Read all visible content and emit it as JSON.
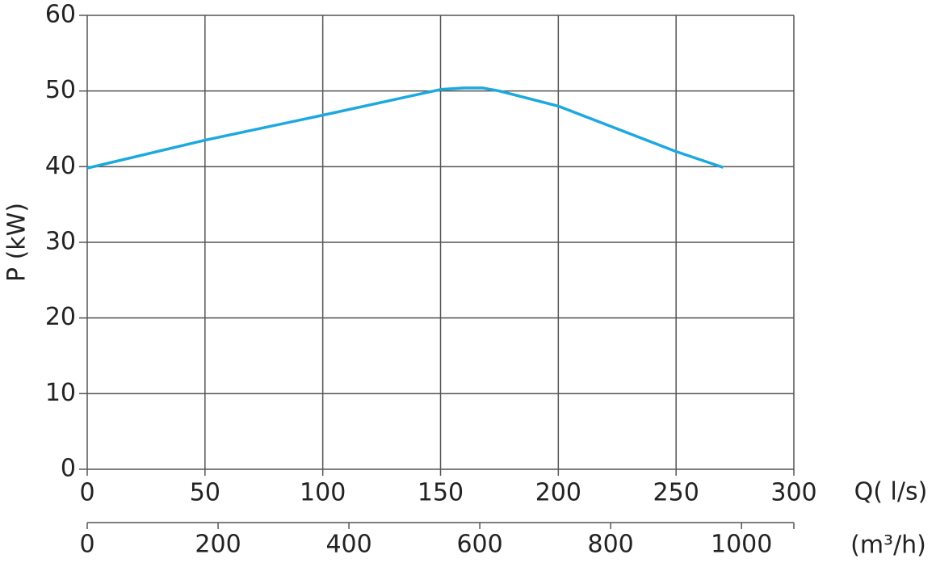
{
  "chart_data": {
    "type": "line",
    "ylabel": "P (kW)",
    "xlabel": "Q( l/s)",
    "x2label": "(m³/h)",
    "x": [
      0,
      50,
      100,
      150,
      160,
      168,
      175,
      200,
      250,
      270
    ],
    "series": [
      {
        "name": "P",
        "color": "#1ea8e0",
        "values": [
          39.8,
          43.5,
          46.8,
          50.2,
          50.4,
          50.4,
          50,
          48,
          42,
          39.9
        ]
      }
    ],
    "xlim": [
      0,
      300
    ],
    "xticks": [
      0,
      50,
      100,
      150,
      200,
      250,
      300
    ],
    "ylim": [
      0,
      60
    ],
    "yticks": [
      0,
      10,
      20,
      30,
      40,
      50,
      60
    ],
    "x2lim": [
      0,
      1080
    ],
    "x2ticks": [
      0,
      200,
      400,
      600,
      800,
      1000
    ],
    "grid": true
  }
}
